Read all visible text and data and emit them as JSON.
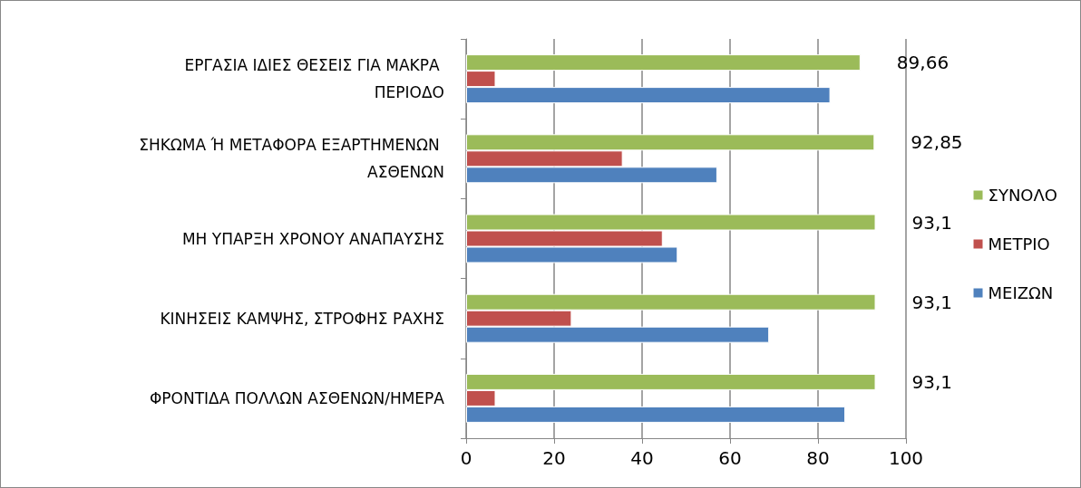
{
  "chart_data": {
    "type": "bar",
    "orientation": "horizontal",
    "categories": [
      "ΕΡΓΑΣΙΑ ΙΔΙΕΣ ΘΕΣΕΙΣ ΓΙΑ ΜΑΚΡΑ ΠΕΡΙΟΔΟ",
      "ΣΗΚΩΜΑ Ή ΜΕΤΑΦΟΡΑ ΕΞΑΡΤΗΜΕΝΩΝ ΑΣΘΕΝΩΝ",
      "ΜΗ ΥΠΑΡΞΗ ΧΡΟΝΟΥ ΑΝΑΠΑΥΣΗΣ",
      "ΚΙΝΗΣΕΙΣ ΚΑΜΨΗΣ, ΣΤΡΟΦΗΣ ΡΑΧΗΣ",
      "ΦΡΟΝΤΙΔΑ ΠΟΛΛΩΝ ΑΣΘΕΝΩΝ/ΗΜΕΡΑ"
    ],
    "series": [
      {
        "name": "ΣΥΝΟΛΟ",
        "color": "#9bbb59",
        "values": [
          89.66,
          92.85,
          93.1,
          93.1,
          93.1
        ],
        "value_labels": [
          "89,66",
          "92,85",
          "93,1",
          "93,1",
          "93,1"
        ]
      },
      {
        "name": "ΜΕΤΡΙΟ",
        "color": "#c0504d",
        "values": [
          6.7,
          35.6,
          44.7,
          24.0,
          6.7
        ]
      },
      {
        "name": "ΜΕΙΖΩΝ",
        "color": "#4f81bd",
        "values": [
          82.8,
          57.1,
          48.1,
          68.9,
          86.2
        ]
      }
    ],
    "xlim": [
      0,
      100
    ],
    "xticks": [
      0,
      20,
      40,
      60,
      80,
      100
    ],
    "grid": "x",
    "legend": "right"
  }
}
